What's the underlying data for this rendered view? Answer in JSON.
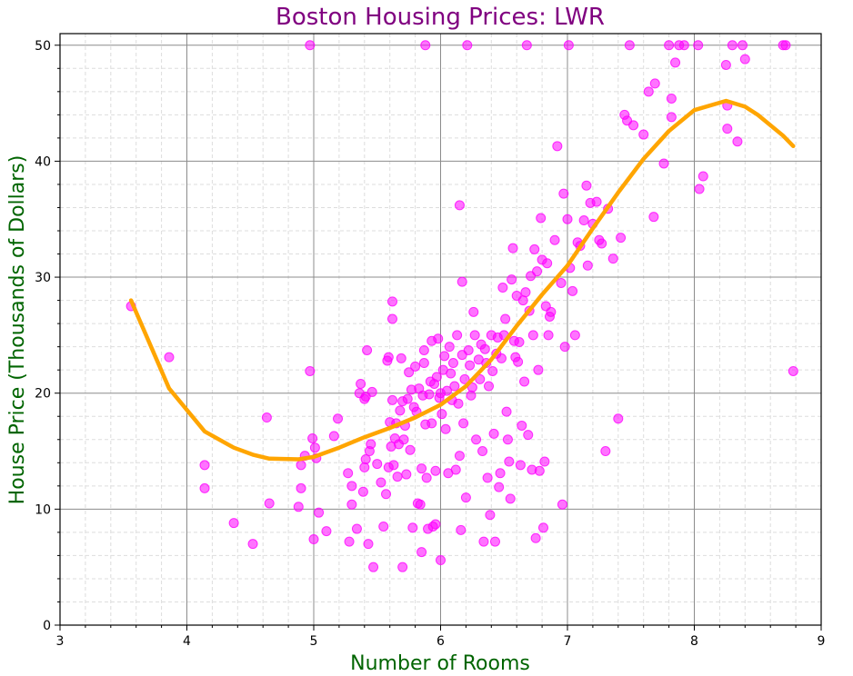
{
  "chart_data": {
    "type": "scatter",
    "title": "Boston Housing Prices: LWR",
    "xlabel": "Number of Rooms",
    "ylabel": "House Price (Thousands of Dollars)",
    "xlim": [
      3,
      9
    ],
    "ylim": [
      0,
      51
    ],
    "xticks": [
      3,
      4,
      5,
      6,
      7,
      8,
      9
    ],
    "yticks": [
      0,
      10,
      20,
      30,
      40,
      50
    ],
    "grid": true,
    "minor_grid": true,
    "colors": {
      "title": "#800080",
      "axis_labels": "#006400",
      "points": "#ff00ff",
      "curve": "#ffa500",
      "grid_major": "#8c8c8c",
      "grid_minor": "#dddddd"
    },
    "series": [
      {
        "kind": "scatter",
        "points": [
          [
            3.56,
            27.5
          ],
          [
            3.86,
            23.1
          ],
          [
            4.14,
            13.8
          ],
          [
            4.14,
            11.8
          ],
          [
            4.37,
            8.8
          ],
          [
            4.52,
            7.0
          ],
          [
            4.63,
            17.9
          ],
          [
            4.65,
            10.5
          ],
          [
            4.88,
            10.2
          ],
          [
            4.9,
            11.8
          ],
          [
            4.9,
            13.8
          ],
          [
            4.93,
            14.6
          ],
          [
            4.97,
            21.9
          ],
          [
            4.97,
            50.0
          ],
          [
            4.99,
            16.1
          ],
          [
            5.0,
            7.4
          ],
          [
            5.01,
            15.3
          ],
          [
            5.02,
            14.4
          ],
          [
            5.04,
            9.7
          ],
          [
            5.1,
            8.1
          ],
          [
            5.16,
            16.3
          ],
          [
            5.19,
            17.8
          ],
          [
            5.27,
            13.1
          ],
          [
            5.28,
            7.2
          ],
          [
            5.3,
            10.4
          ],
          [
            5.3,
            12.0
          ],
          [
            5.34,
            8.3
          ],
          [
            5.36,
            20.0
          ],
          [
            5.37,
            20.8
          ],
          [
            5.39,
            11.5
          ],
          [
            5.4,
            13.6
          ],
          [
            5.4,
            19.5
          ],
          [
            5.41,
            14.3
          ],
          [
            5.41,
            19.7
          ],
          [
            5.42,
            23.7
          ],
          [
            5.43,
            7.0
          ],
          [
            5.44,
            15.0
          ],
          [
            5.45,
            15.6
          ],
          [
            5.46,
            20.1
          ],
          [
            5.47,
            5.0
          ],
          [
            5.5,
            13.9
          ],
          [
            5.53,
            12.3
          ],
          [
            5.55,
            8.5
          ],
          [
            5.57,
            11.3
          ],
          [
            5.58,
            22.8
          ],
          [
            5.59,
            23.1
          ],
          [
            5.59,
            13.6
          ],
          [
            5.6,
            17.5
          ],
          [
            5.61,
            15.4
          ],
          [
            5.62,
            27.9
          ],
          [
            5.62,
            26.4
          ],
          [
            5.62,
            19.4
          ],
          [
            5.63,
            13.8
          ],
          [
            5.64,
            16.1
          ],
          [
            5.65,
            17.4
          ],
          [
            5.66,
            12.8
          ],
          [
            5.67,
            15.6
          ],
          [
            5.68,
            18.5
          ],
          [
            5.69,
            23.0
          ],
          [
            5.7,
            5.0
          ],
          [
            5.7,
            19.3
          ],
          [
            5.71,
            16.0
          ],
          [
            5.72,
            17.2
          ],
          [
            5.73,
            13.0
          ],
          [
            5.74,
            19.5
          ],
          [
            5.75,
            21.8
          ],
          [
            5.76,
            15.1
          ],
          [
            5.77,
            20.3
          ],
          [
            5.78,
            8.4
          ],
          [
            5.79,
            18.8
          ],
          [
            5.8,
            22.3
          ],
          [
            5.81,
            18.4
          ],
          [
            5.82,
            10.5
          ],
          [
            5.83,
            20.4
          ],
          [
            5.84,
            10.4
          ],
          [
            5.85,
            6.3
          ],
          [
            5.85,
            13.5
          ],
          [
            5.86,
            19.8
          ],
          [
            5.87,
            22.6
          ],
          [
            5.87,
            23.7
          ],
          [
            5.88,
            50.0
          ],
          [
            5.88,
            17.3
          ],
          [
            5.89,
            12.7
          ],
          [
            5.9,
            8.3
          ],
          [
            5.91,
            19.9
          ],
          [
            5.92,
            21.0
          ],
          [
            5.93,
            24.5
          ],
          [
            5.93,
            17.4
          ],
          [
            5.94,
            8.5
          ],
          [
            5.95,
            20.8
          ],
          [
            5.96,
            13.3
          ],
          [
            5.96,
            8.7
          ],
          [
            5.97,
            21.4
          ],
          [
            5.98,
            24.7
          ],
          [
            5.99,
            19.6
          ],
          [
            6.0,
            5.6
          ],
          [
            6.0,
            20.0
          ],
          [
            6.01,
            18.2
          ],
          [
            6.02,
            22.0
          ],
          [
            6.03,
            23.2
          ],
          [
            6.04,
            16.9
          ],
          [
            6.05,
            20.2
          ],
          [
            6.06,
            13.1
          ],
          [
            6.07,
            24.0
          ],
          [
            6.08,
            21.7
          ],
          [
            6.09,
            19.4
          ],
          [
            6.1,
            22.6
          ],
          [
            6.11,
            20.6
          ],
          [
            6.12,
            13.4
          ],
          [
            6.13,
            25.0
          ],
          [
            6.14,
            19.1
          ],
          [
            6.15,
            14.6
          ],
          [
            6.15,
            36.2
          ],
          [
            6.16,
            8.2
          ],
          [
            6.17,
            29.6
          ],
          [
            6.17,
            23.3
          ],
          [
            6.18,
            17.4
          ],
          [
            6.19,
            21.2
          ],
          [
            6.2,
            11.0
          ],
          [
            6.21,
            50.0
          ],
          [
            6.22,
            23.7
          ],
          [
            6.23,
            22.4
          ],
          [
            6.24,
            19.8
          ],
          [
            6.25,
            20.5
          ],
          [
            6.26,
            27.0
          ],
          [
            6.27,
            25.0
          ],
          [
            6.28,
            16.0
          ],
          [
            6.3,
            22.9
          ],
          [
            6.31,
            21.2
          ],
          [
            6.32,
            24.2
          ],
          [
            6.33,
            15.0
          ],
          [
            6.34,
            7.2
          ],
          [
            6.35,
            23.8
          ],
          [
            6.36,
            22.6
          ],
          [
            6.37,
            12.7
          ],
          [
            6.38,
            20.6
          ],
          [
            6.39,
            9.5
          ],
          [
            6.4,
            25.0
          ],
          [
            6.41,
            21.9
          ],
          [
            6.42,
            16.5
          ],
          [
            6.43,
            7.2
          ],
          [
            6.44,
            23.4
          ],
          [
            6.45,
            24.8
          ],
          [
            6.46,
            11.9
          ],
          [
            6.47,
            13.1
          ],
          [
            6.48,
            23.0
          ],
          [
            6.49,
            29.1
          ],
          [
            6.5,
            25.0
          ],
          [
            6.51,
            26.4
          ],
          [
            6.52,
            18.4
          ],
          [
            6.53,
            16.0
          ],
          [
            6.54,
            14.1
          ],
          [
            6.55,
            10.9
          ],
          [
            6.56,
            29.8
          ],
          [
            6.57,
            32.5
          ],
          [
            6.58,
            24.5
          ],
          [
            6.59,
            23.1
          ],
          [
            6.6,
            28.4
          ],
          [
            6.61,
            22.7
          ],
          [
            6.62,
            24.4
          ],
          [
            6.63,
            13.8
          ],
          [
            6.64,
            17.2
          ],
          [
            6.65,
            28.0
          ],
          [
            6.66,
            21.0
          ],
          [
            6.67,
            28.7
          ],
          [
            6.68,
            50.0
          ],
          [
            6.69,
            16.4
          ],
          [
            6.7,
            27.1
          ],
          [
            6.71,
            30.1
          ],
          [
            6.72,
            13.4
          ],
          [
            6.73,
            25.0
          ],
          [
            6.74,
            32.4
          ],
          [
            6.75,
            7.5
          ],
          [
            6.76,
            30.5
          ],
          [
            6.77,
            22.0
          ],
          [
            6.78,
            13.3
          ],
          [
            6.79,
            35.1
          ],
          [
            6.8,
            31.5
          ],
          [
            6.81,
            8.4
          ],
          [
            6.82,
            14.1
          ],
          [
            6.83,
            27.5
          ],
          [
            6.84,
            31.2
          ],
          [
            6.85,
            25.0
          ],
          [
            6.86,
            26.6
          ],
          [
            6.87,
            27.0
          ],
          [
            6.9,
            33.2
          ],
          [
            6.92,
            41.3
          ],
          [
            6.95,
            29.5
          ],
          [
            6.96,
            10.4
          ],
          [
            6.97,
            37.2
          ],
          [
            6.98,
            24.0
          ],
          [
            7.0,
            35.0
          ],
          [
            7.01,
            50.0
          ],
          [
            7.02,
            30.8
          ],
          [
            7.04,
            28.8
          ],
          [
            7.06,
            25.0
          ],
          [
            7.08,
            33.0
          ],
          [
            7.1,
            32.7
          ],
          [
            7.13,
            34.9
          ],
          [
            7.15,
            37.9
          ],
          [
            7.16,
            31.0
          ],
          [
            7.18,
            36.4
          ],
          [
            7.2,
            34.6
          ],
          [
            7.23,
            36.5
          ],
          [
            7.25,
            33.2
          ],
          [
            7.27,
            32.9
          ],
          [
            7.3,
            15.0
          ],
          [
            7.32,
            35.9
          ],
          [
            7.36,
            31.6
          ],
          [
            7.4,
            17.8
          ],
          [
            7.42,
            33.4
          ],
          [
            7.45,
            44.0
          ],
          [
            7.47,
            43.5
          ],
          [
            7.49,
            50.0
          ],
          [
            7.52,
            43.1
          ],
          [
            7.6,
            42.3
          ],
          [
            7.64,
            46.0
          ],
          [
            7.68,
            35.2
          ],
          [
            7.69,
            46.7
          ],
          [
            7.76,
            39.8
          ],
          [
            7.8,
            50.0
          ],
          [
            7.82,
            43.8
          ],
          [
            7.82,
            45.4
          ],
          [
            7.85,
            48.5
          ],
          [
            7.88,
            50.0
          ],
          [
            7.92,
            50.0
          ],
          [
            8.03,
            50.0
          ],
          [
            8.04,
            37.6
          ],
          [
            8.07,
            38.7
          ],
          [
            8.25,
            48.3
          ],
          [
            8.26,
            42.8
          ],
          [
            8.26,
            44.8
          ],
          [
            8.3,
            50.0
          ],
          [
            8.34,
            41.7
          ],
          [
            8.38,
            50.0
          ],
          [
            8.4,
            48.8
          ],
          [
            8.7,
            50.0
          ],
          [
            8.72,
            50.0
          ],
          [
            8.78,
            21.9
          ]
        ]
      },
      {
        "kind": "line",
        "points": [
          [
            3.56,
            28.0
          ],
          [
            3.86,
            20.4
          ],
          [
            4.14,
            16.7
          ],
          [
            4.37,
            15.3
          ],
          [
            4.52,
            14.7
          ],
          [
            4.65,
            14.35
          ],
          [
            4.88,
            14.3
          ],
          [
            5.0,
            14.5
          ],
          [
            5.2,
            15.3
          ],
          [
            5.4,
            16.2
          ],
          [
            5.6,
            17.0
          ],
          [
            5.8,
            17.9
          ],
          [
            6.0,
            19.0
          ],
          [
            6.2,
            20.6
          ],
          [
            6.4,
            22.9
          ],
          [
            6.6,
            25.8
          ],
          [
            6.8,
            28.5
          ],
          [
            7.0,
            31.0
          ],
          [
            7.2,
            34.2
          ],
          [
            7.4,
            37.3
          ],
          [
            7.6,
            40.2
          ],
          [
            7.8,
            42.6
          ],
          [
            8.0,
            44.4
          ],
          [
            8.25,
            45.2
          ],
          [
            8.4,
            44.7
          ],
          [
            8.5,
            44.0
          ],
          [
            8.7,
            42.2
          ],
          [
            8.78,
            41.3
          ]
        ]
      }
    ]
  }
}
